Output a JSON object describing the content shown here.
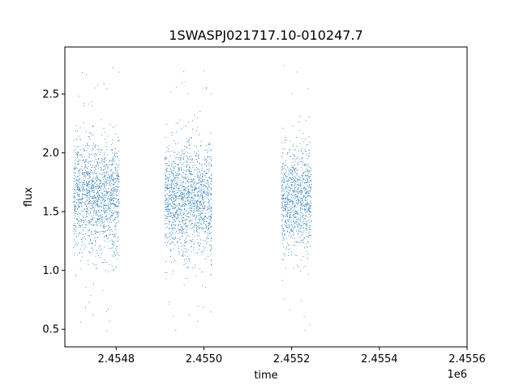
{
  "chart_data": {
    "type": "scatter",
    "title": "1SWASPJ021717.10-010247.7",
    "xlabel": "time",
    "ylabel": "flux",
    "x_offset_label": "1e6",
    "xlim": [
      2454683,
      2455600
    ],
    "ylim": [
      0.35,
      2.9
    ],
    "x_ticks": [
      2454800,
      2455000,
      2455200,
      2455400,
      2455600
    ],
    "x_tick_labels": [
      "2.4548",
      "2.4550",
      "2.4552",
      "2.4554",
      "2.4556"
    ],
    "y_ticks": [
      0.5,
      1.0,
      1.5,
      2.0,
      2.5
    ],
    "y_tick_labels": [
      "0.5",
      "1.0",
      "1.5",
      "2.0",
      "2.5"
    ],
    "grid": false,
    "legend": "none",
    "point_color": "#1f77b4",
    "series": [
      {
        "observing_seasons": [
          {
            "x_range": [
              2454703,
              2454807
            ],
            "flux_center": 1.63,
            "flux_spread": 0.24
          },
          {
            "x_range": [
              2454911,
              2455015
            ],
            "flux_center": 1.6,
            "flux_spread": 0.24
          },
          {
            "x_range": [
              2455016,
              2455017
            ],
            "flux_center": 1.55,
            "flux_spread": 0.35
          },
          {
            "x_range": [
              2455177,
              2455245
            ],
            "flux_center": 1.6,
            "flux_spread": 0.22
          }
        ]
      }
    ]
  }
}
